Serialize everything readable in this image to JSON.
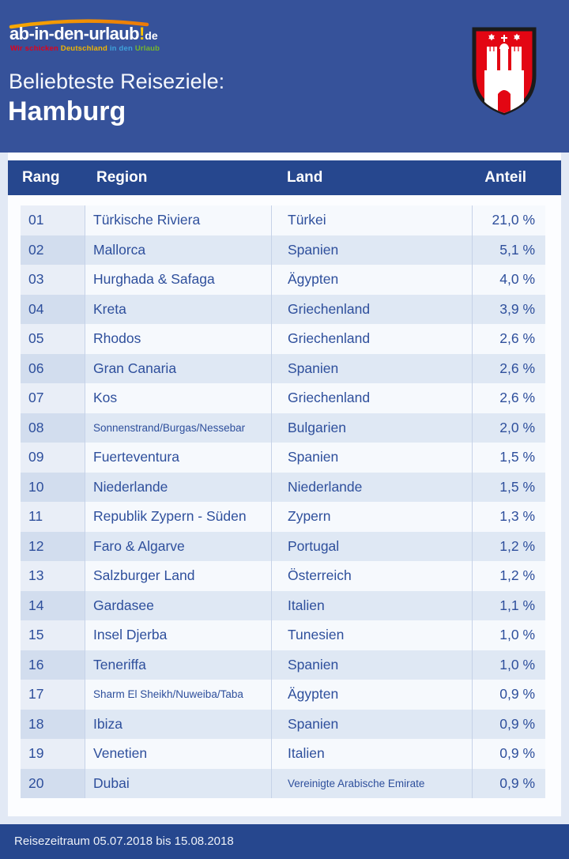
{
  "brand": {
    "logo_main": "ab-in-den-urlaub",
    "logo_exclamation": "!",
    "logo_tld": "de",
    "tagline": [
      {
        "text": "Wir schicken",
        "color": "#E2001A"
      },
      {
        "text": "Deutschland",
        "color": "#F0B400"
      },
      {
        "text": "in den",
        "color": "#3FA3DB"
      },
      {
        "text": "Urlaub",
        "color": "#76B82A"
      }
    ]
  },
  "header": {
    "subtitle": "Beliebteste Reiseziele:",
    "title": "Hamburg",
    "crest": "hamburg-coat-of-arms"
  },
  "footer": {
    "text": "Reisezeitraum 05.07.2018 bis 15.08.2018"
  },
  "colors": {
    "top_background": "#36529A",
    "bar_blue": "#26478E",
    "body_background": "#E2E9F5",
    "card_background": "#FCFDFF",
    "row_odd": "#F6F9FD",
    "row_odd_rank": "#E9EEF7",
    "row_even": "#DFE8F4",
    "row_even_rank": "#D2DDEE",
    "table_text": "#2E4F9C",
    "crest_red": "#E30613",
    "swoosh_orange": "#F39200",
    "logo_accent_yellow": "#FFC600"
  },
  "chart_data": {
    "type": "table",
    "title": "Beliebteste Reiseziele: Hamburg",
    "columns": [
      "Rang",
      "Region",
      "Land",
      "Anteil"
    ],
    "rows": [
      [
        "01",
        "Türkische Riviera",
        "Türkei",
        "21,0 %"
      ],
      [
        "02",
        "Mallorca",
        "Spanien",
        "5,1 %"
      ],
      [
        "03",
        "Hurghada & Safaga",
        "Ägypten",
        "4,0 %"
      ],
      [
        "04",
        "Kreta",
        "Griechenland",
        "3,9 %"
      ],
      [
        "05",
        "Rhodos",
        "Griechenland",
        "2,6 %"
      ],
      [
        "06",
        "Gran Canaria",
        "Spanien",
        "2,6 %"
      ],
      [
        "07",
        "Kos",
        "Griechenland",
        "2,6 %"
      ],
      [
        "08",
        "Sonnenstrand/Burgas/Nessebar",
        "Bulgarien",
        "2,0 %"
      ],
      [
        "09",
        "Fuerteventura",
        "Spanien",
        "1,5 %"
      ],
      [
        "10",
        "Niederlande",
        "Niederlande",
        "1,5 %"
      ],
      [
        "11",
        "Republik Zypern - Süden",
        "Zypern",
        "1,3 %"
      ],
      [
        "12",
        "Faro & Algarve",
        "Portugal",
        "1,2 %"
      ],
      [
        "13",
        "Salzburger Land",
        "Österreich",
        "1,2 %"
      ],
      [
        "14",
        "Gardasee",
        "Italien",
        "1,1 %"
      ],
      [
        "15",
        "Insel Djerba",
        "Tunesien",
        "1,0 %"
      ],
      [
        "16",
        "Teneriffa",
        "Spanien",
        "1,0 %"
      ],
      [
        "17",
        "Sharm El Sheikh/Nuweiba/Taba",
        "Ägypten",
        "0,9 %"
      ],
      [
        "18",
        "Ibiza",
        "Spanien",
        "0,9 %"
      ],
      [
        "19",
        "Venetien",
        "Italien",
        "0,9 %"
      ],
      [
        "20",
        "Dubai",
        "Vereinigte Arabische Emirate",
        "0,9 %"
      ]
    ],
    "anteil_values_percent": [
      21.0,
      5.1,
      4.0,
      3.9,
      2.6,
      2.6,
      2.6,
      2.0,
      1.5,
      1.5,
      1.3,
      1.2,
      1.2,
      1.1,
      1.0,
      1.0,
      0.9,
      0.9,
      0.9,
      0.9
    ],
    "period": "05.07.2018 bis 15.08.2018"
  }
}
